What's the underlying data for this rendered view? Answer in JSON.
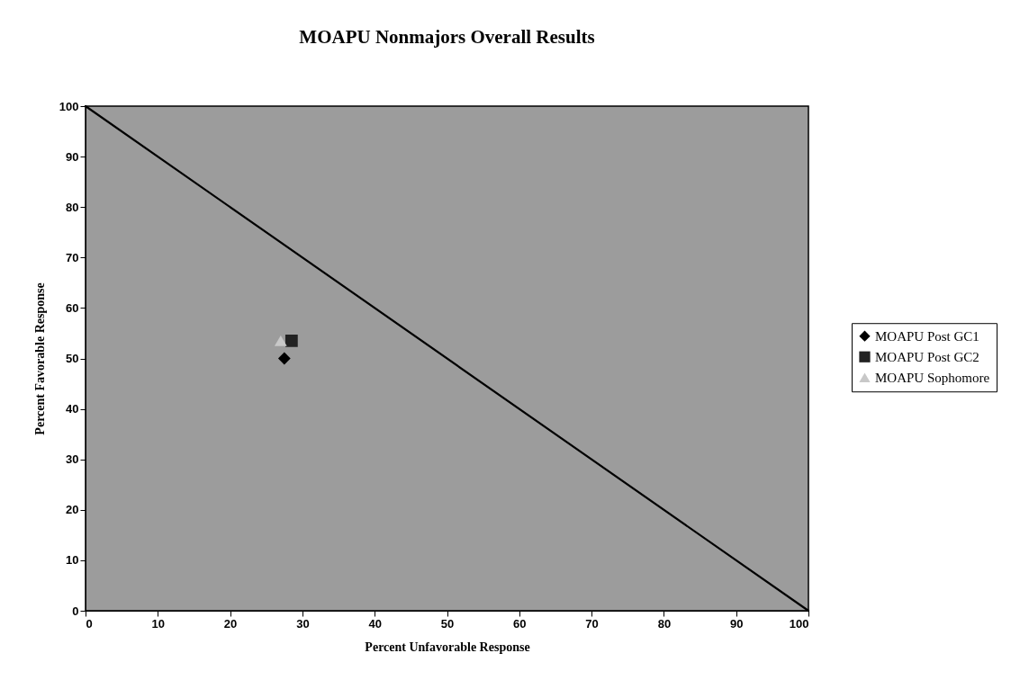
{
  "chart_data": {
    "type": "scatter",
    "title": "MOAPU Nonmajors Overall Results",
    "xlabel": "Percent Unfavorable Response",
    "ylabel": "Percent Favorable Response",
    "xlim": [
      0,
      100
    ],
    "ylim": [
      0,
      100
    ],
    "xticks": [
      0,
      10,
      20,
      30,
      40,
      50,
      60,
      70,
      80,
      90,
      100
    ],
    "yticks": [
      0,
      10,
      20,
      30,
      40,
      50,
      60,
      70,
      80,
      90,
      100
    ],
    "grid": false,
    "legend": "right",
    "series": [
      {
        "type": "line",
        "color": "#000000",
        "line_style": "solid",
        "x": [
          0,
          100
        ],
        "values": [
          100,
          0
        ]
      },
      {
        "name": "MOAPU Post GC1",
        "color": "#000000",
        "marker": "diamond",
        "x": [
          27.5
        ],
        "values": [
          50
        ]
      },
      {
        "name": "MOAPU Post GC2",
        "color": "#222222",
        "marker": "square",
        "x": [
          28.5
        ],
        "values": [
          53.5
        ]
      },
      {
        "name": "MOAPU Sophomore",
        "color": "#c8c8c8",
        "marker": "triangle",
        "x": [
          27
        ],
        "values": [
          53.5
        ]
      }
    ]
  }
}
